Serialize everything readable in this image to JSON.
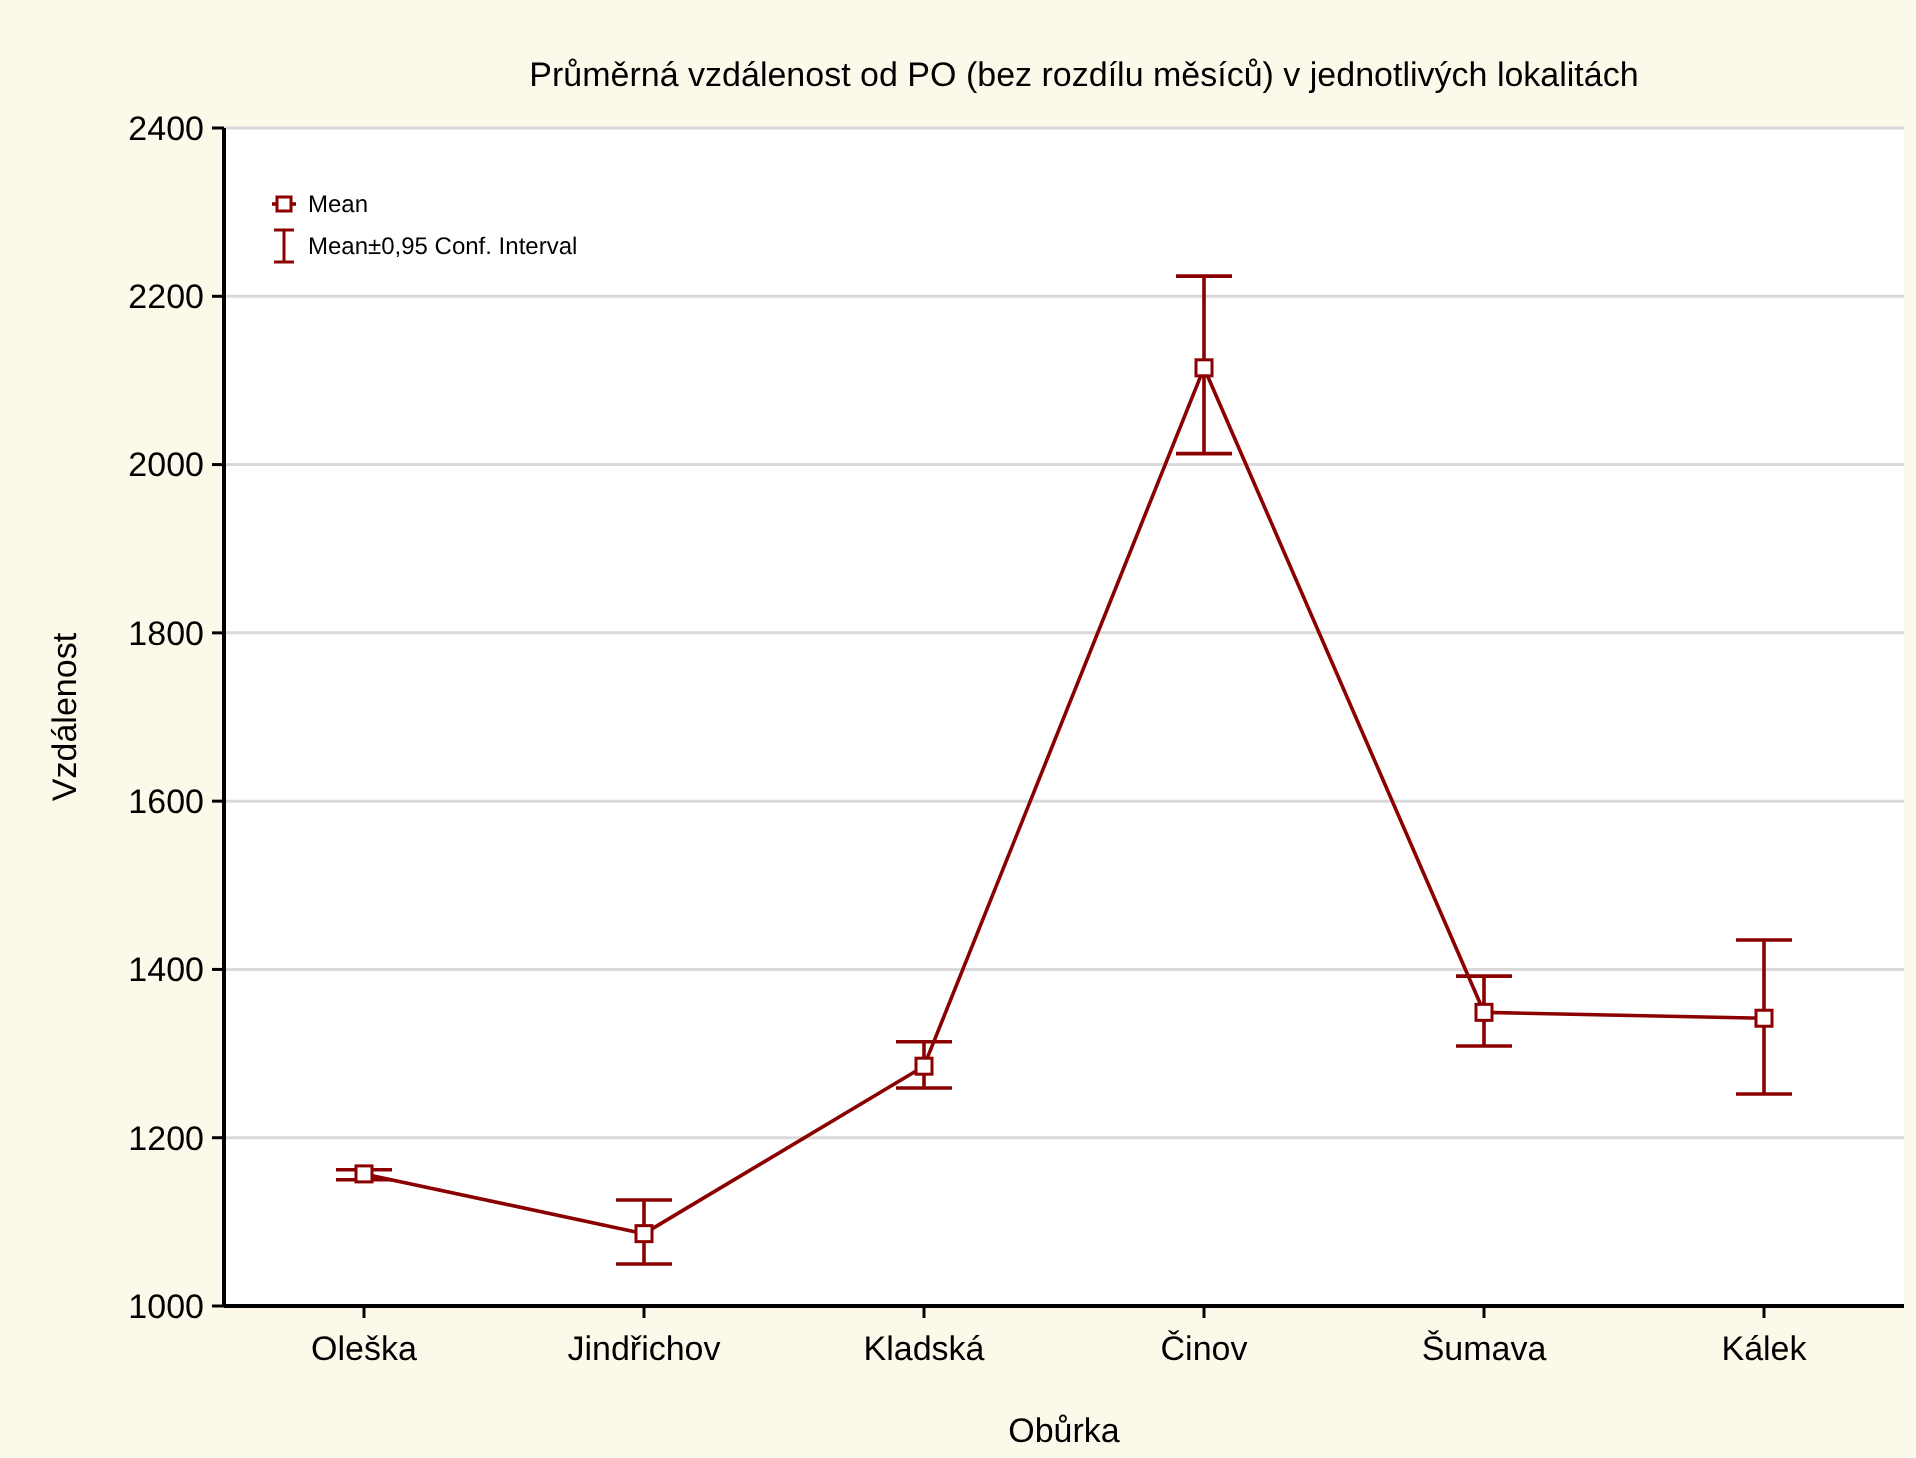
{
  "chart_data": {
    "type": "line",
    "title": "Průměrná vzdálenost od PO (bez rozdílu měsíců) v jednotlivých lokalitách",
    "xlabel": "Obůrka",
    "ylabel": "Vzdálenost",
    "categories": [
      "Oleška",
      "Jindřichov",
      "Kladská",
      "Činov",
      "Šumava",
      "Kálek"
    ],
    "series": [
      {
        "name": "Mean",
        "color": "#8b0000",
        "values": [
          1157,
          1086,
          1285,
          2115,
          1349,
          1342
        ],
        "errors": [
          [
            1150,
            1162
          ],
          [
            1050,
            1126
          ],
          [
            1259,
            1314
          ],
          [
            2013,
            2224
          ],
          [
            1309,
            1392
          ],
          [
            1252,
            1435
          ]
        ]
      }
    ],
    "annotations": [
      "Mean±0,95 Conf. Interval"
    ],
    "ylim": [
      1000,
      2400
    ],
    "yticks": [
      1000,
      1200,
      1400,
      1600,
      1800,
      2000,
      2200,
      2400
    ],
    "grid": "y",
    "legend": "top left",
    "marker": "square",
    "line_style": "solid"
  }
}
